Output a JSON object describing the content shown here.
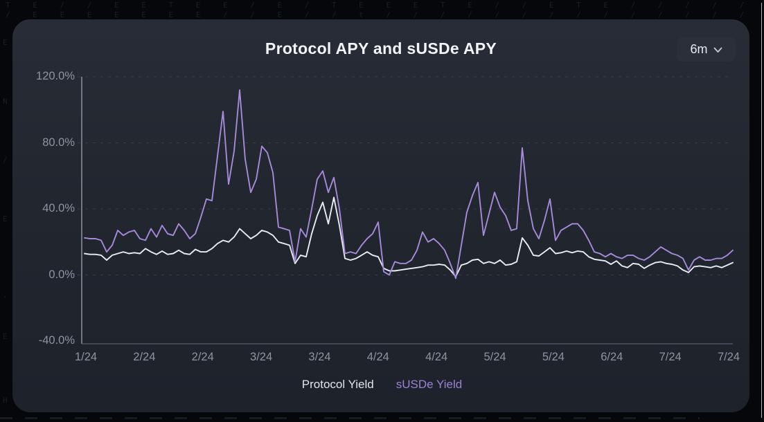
{
  "card": {
    "title": "Protocol APY and sUSDe APY"
  },
  "range_selector": {
    "value": "6m",
    "icon": "chevron-down-icon"
  },
  "chart_data": {
    "type": "line",
    "title": "Protocol APY and sUSDe APY",
    "xlabel": "",
    "ylabel": "",
    "ylim": [
      -40,
      120
    ],
    "yticks": [
      120,
      80,
      40,
      0,
      -40
    ],
    "y_tick_labels": [
      "120.0%",
      "80.0%",
      "40.0%",
      "0.0%",
      "-40.0%"
    ],
    "x_tick_labels": [
      "1/24",
      "2/24",
      "2/24",
      "3/24",
      "3/24",
      "4/24",
      "4/24",
      "5/24",
      "5/24",
      "6/24",
      "7/24",
      "7/24"
    ],
    "grid": "horizontal-dashed",
    "legend_position": "bottom-center",
    "unit": "%",
    "series": [
      {
        "name": "Protocol Yield",
        "color": "#e9edf4",
        "values": [
          13,
          12.5,
          12.5,
          12,
          9,
          12,
          13,
          14,
          13,
          13.5,
          13,
          16,
          14,
          12.5,
          14.5,
          12.5,
          13,
          15,
          13,
          12.5,
          15.5,
          14,
          14,
          16,
          19,
          21,
          20,
          23,
          28,
          25,
          22,
          24,
          27,
          26,
          24,
          20,
          19,
          18,
          7,
          12,
          11,
          25,
          36,
          44,
          31,
          47,
          30,
          10,
          9,
          10,
          12,
          14,
          12,
          11,
          4,
          2.5,
          2.5,
          3,
          3.5,
          4,
          4.5,
          5,
          6,
          6,
          6.5,
          6,
          3,
          -1,
          6,
          7,
          9,
          9.5,
          7,
          8,
          7,
          9,
          6,
          6.5,
          8,
          22.5,
          18,
          12,
          11.5,
          14,
          16.5,
          13,
          13.5,
          14.5,
          13.5,
          14.5,
          14,
          11,
          9.5,
          9,
          8.5,
          6.5,
          8.5,
          5.5,
          4.5,
          7,
          6.5,
          4,
          6,
          7.5,
          8,
          7,
          6.5,
          5.5,
          3,
          1.5,
          5,
          5.5,
          5,
          4.5,
          5.5,
          4.5,
          6,
          7.5
        ]
      },
      {
        "name": "sUSDe Yield",
        "color": "#a78bdb",
        "values": [
          22.5,
          22,
          22,
          21,
          14,
          18,
          27,
          24,
          26,
          27,
          22,
          21,
          28,
          23,
          30,
          25,
          24,
          31,
          27,
          22,
          25,
          35,
          46,
          45,
          72,
          99,
          55,
          75,
          112,
          70,
          50,
          58,
          78,
          74,
          62,
          29,
          28,
          27,
          8,
          28,
          23,
          40,
          58,
          63,
          50,
          59,
          40,
          13,
          14,
          13,
          18,
          22,
          25,
          32,
          2,
          0,
          8,
          7,
          7,
          9,
          15,
          26,
          20,
          22,
          19,
          15,
          7,
          -2,
          18,
          38,
          48,
          56,
          24,
          37,
          50,
          41,
          36,
          27,
          28,
          77,
          45,
          28,
          22,
          33,
          46,
          21,
          27,
          29,
          31,
          31,
          27,
          21,
          14,
          13,
          11,
          13,
          11,
          10,
          12,
          12,
          10,
          9,
          11,
          14,
          17,
          15,
          13,
          12,
          10,
          3,
          9,
          11,
          9,
          9,
          10,
          10,
          12,
          15
        ]
      }
    ]
  },
  "colors": {
    "card_bg": "#23262f",
    "page_bg": "#06070a",
    "axis_line": "#8d93a1",
    "grid_line": "#3a3f4b",
    "tick_text": "#8d94a2",
    "title_text": "#f2f4f8",
    "protocol_line": "#e9edf4",
    "susde_line": "#a78bdb",
    "legend_protocol": "#e0e5ee",
    "legend_susde": "#9c81d4"
  },
  "background": {
    "glyph_row_1": "T E / / E E T E E / E / T E E E T E / / E T E / / / / / / E E E / E E E / / / H H H H H H",
    "glyph_row_2": "/ E E E E E E E / / E / / t / / / / / / / / / / / / / / / / / / / / / / / / / / / / / / /",
    "side_glyphs": [
      "E",
      "N",
      "/",
      "E",
      ".",
      "E",
      "H"
    ]
  }
}
